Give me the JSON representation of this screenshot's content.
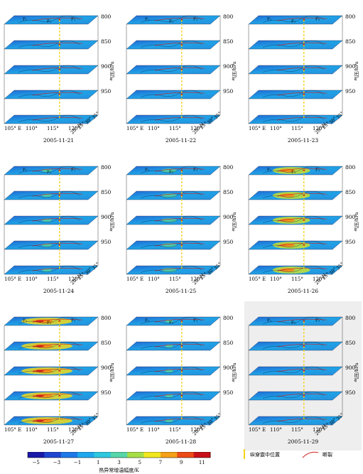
{
  "figure": {
    "pressure_axis_label": "气压/hPa",
    "pressure_levels": [
      "800",
      "850",
      "900",
      "950"
    ],
    "longitude_ticks": [
      "105° E",
      "110°",
      "115°",
      "120°"
    ],
    "latitude_ticks": [
      "20° N",
      "25°",
      "30°",
      "35°"
    ],
    "fault_labels": [
      "F₁",
      "F₂",
      "F₃"
    ],
    "panels": [
      {
        "date": "2005-11-21",
        "intensity": 0.05,
        "shaded": false
      },
      {
        "date": "2005-11-22",
        "intensity": 0.04,
        "shaded": false
      },
      {
        "date": "2005-11-23",
        "intensity": 0.03,
        "shaded": false
      },
      {
        "date": "2005-11-24",
        "intensity": 0.18,
        "shaded": false
      },
      {
        "date": "2005-11-25",
        "intensity": 0.28,
        "shaded": false
      },
      {
        "date": "2005-11-26",
        "intensity": 0.7,
        "shaded": false
      },
      {
        "date": "2005-11-27",
        "intensity": 0.95,
        "shaded": false
      },
      {
        "date": "2005-11-28",
        "intensity": 0.15,
        "shaded": false
      },
      {
        "date": "2005-11-29",
        "intensity": 0.06,
        "shaded": true
      }
    ]
  },
  "colorbar": {
    "title": "热异常增温幅度/K",
    "tick_labels": [
      "−5",
      "−3",
      "−1",
      "1",
      "3",
      "5",
      "7",
      "9",
      "11"
    ],
    "colors": [
      "#1a1aa8",
      "#1f46d0",
      "#1f78e8",
      "#1fa8ee",
      "#2ec8e0",
      "#58d6a8",
      "#a6de46",
      "#f0e81e",
      "#f4a018",
      "#ec4a16",
      "#c8101a"
    ]
  },
  "legend": {
    "epicenter_line_label": "纵穿震中位置",
    "fault_label": "断裂",
    "epicenter_line_color": "#f2d21a",
    "fault_color": "#d21f1f"
  },
  "chart_data": {
    "type": "heatmap",
    "title": "",
    "panels": [
      "2005-11-21",
      "2005-11-22",
      "2005-11-23",
      "2005-11-24",
      "2005-11-25",
      "2005-11-26",
      "2005-11-27",
      "2005-11-28",
      "2005-11-29"
    ],
    "z_axis": {
      "label": "气压/hPa",
      "levels": [
        800,
        850,
        900,
        950
      ]
    },
    "x_axis": {
      "label": "",
      "ticks": [
        "105° E",
        "110°",
        "115°",
        "120°"
      ]
    },
    "y_axis": {
      "label": "",
      "ticks": [
        "20° N",
        "25°",
        "30°",
        "35°"
      ]
    },
    "colorbar": {
      "label": "热异常增温幅度/K",
      "range": [
        -5,
        11
      ],
      "ticks": [
        -5,
        -3,
        -1,
        1,
        3,
        5,
        7,
        9,
        11
      ]
    }
  }
}
